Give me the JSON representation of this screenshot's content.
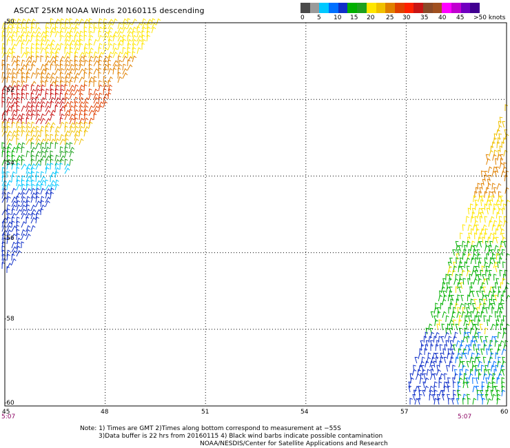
{
  "title": "ASCAT 25KM NOAA Winds 20160115 descending",
  "colorbar": {
    "colors": [
      "#4a4a4a",
      "#9a9a9a",
      "#00c8ff",
      "#0070ff",
      "#1030c8",
      "#00b000",
      "#1ea01e",
      "#ffe600",
      "#f0c000",
      "#e08000",
      "#e04000",
      "#ff2000",
      "#c81414",
      "#8a4a28",
      "#a05020",
      "#ff00ff",
      "#c000d0",
      "#7000c0",
      "#400090"
    ],
    "labels": [
      "0",
      "5",
      "10",
      "15",
      "20",
      "25",
      "30",
      "35",
      "40",
      "45",
      ">50 knots"
    ]
  },
  "axes": {
    "lat_ticks": [
      "-50",
      "-52",
      "-54",
      "-56",
      "-58",
      "-60"
    ],
    "lon_ticks": [
      "45",
      "48",
      "51",
      "54",
      "57",
      "60"
    ],
    "xlim": [
      45,
      60
    ],
    "ylim": [
      -60,
      -50
    ],
    "grid": true
  },
  "time_labels": [
    "5:07",
    "5:07"
  ],
  "notes": {
    "line1": "Note: 1) Times are GMT 2)Times along bottom correspond to measurement at −55S",
    "line2": "3)Data buffer is 22 hrs from 20160115 4) Black wind barbs indicate possible contamination",
    "line3": "NOAA/NESDIS/Center for Satellite Applications and Research"
  }
}
